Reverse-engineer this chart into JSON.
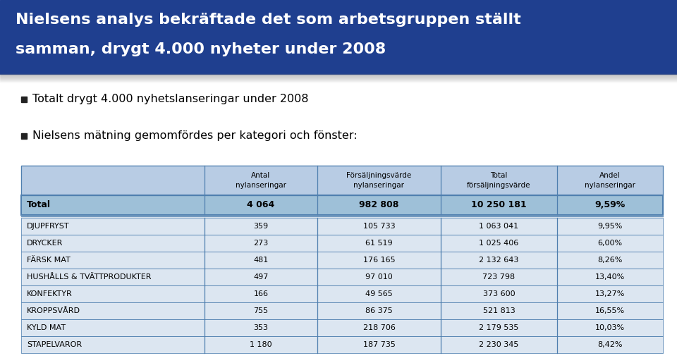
{
  "title_line1": "Nielsens analys bekräftade det som arbetsgruppen ställt",
  "title_line2": "samman, drygt 4.000 nyheter under 2008",
  "title_bg": "#1f3f8f",
  "title_color": "#ffffff",
  "bullet1": "Totalt drygt 4.000 nyhetslanseringar under 2008",
  "bullet2": "Nielsens mätning gemomfördes per kategori och fönster:",
  "table_header": [
    "Antal\nnylanseringar",
    "Försäljningsvärde\nnylanseringar",
    "Total\nförsäljningsvärde",
    "Andel\nnylanseringar"
  ],
  "total_row": [
    "Total",
    "4 064",
    "982 808",
    "10 250 181",
    "9,59%"
  ],
  "rows": [
    [
      "DJUPFRYST",
      "359",
      "105 733",
      "1 063 041",
      "9,95%"
    ],
    [
      "DRYCKER",
      "273",
      "61 519",
      "1 025 406",
      "6,00%"
    ],
    [
      "FÄRSK MAT",
      "481",
      "176 165",
      "2 132 643",
      "8,26%"
    ],
    [
      "HUSHÅLLS & TVÄTTPRODUKTER",
      "497",
      "97 010",
      "723 798",
      "13,40%"
    ],
    [
      "KONFEKTYR",
      "166",
      "49 565",
      "373 600",
      "13,27%"
    ],
    [
      "KROPPSVÅRD",
      "755",
      "86 375",
      "521 813",
      "16,55%"
    ],
    [
      "KYLD MAT",
      "353",
      "218 706",
      "2 179 535",
      "10,03%"
    ],
    [
      "STAPELVAROR",
      "1 180",
      "187 735",
      "2 230 345",
      "8,42%"
    ]
  ],
  "table_header_bg": "#b8cce4",
  "total_row_bg": "#9ec0d8",
  "data_row_bg": "#dce6f1",
  "table_border_color": "#4f7faf",
  "bg_color": "#ffffff",
  "shadow_color": "#cccccc"
}
